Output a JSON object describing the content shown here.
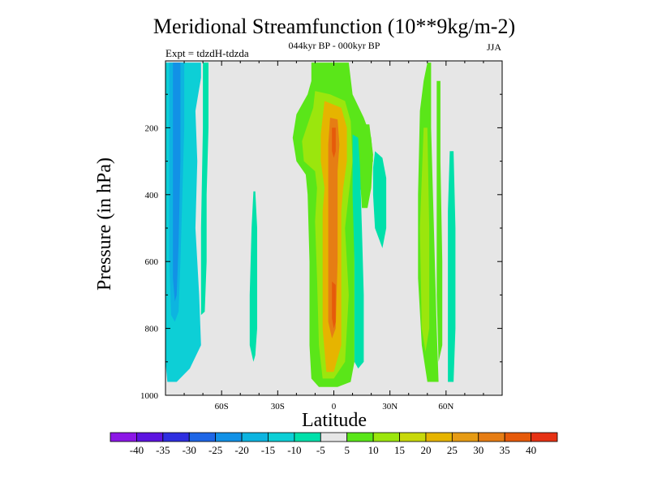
{
  "chart_data": {
    "type": "heatmap",
    "title": "Meridional Streamfunction (10**9kg/m-2)",
    "subtitle": "044kyr BP - 000kyr BP",
    "left_label": "Expt = tdzdH-tdzda",
    "right_label": "JJA",
    "xlabel": "Latitude",
    "ylabel": "Pressure (in hPa)",
    "xlim": [
      -90,
      90
    ],
    "ylim": [
      1000,
      0
    ],
    "x_ticks": [
      {
        "value": -60,
        "label": "60S"
      },
      {
        "value": -30,
        "label": "30S"
      },
      {
        "value": 0,
        "label": "0"
      },
      {
        "value": 30,
        "label": "30N"
      },
      {
        "value": 60,
        "label": "60N"
      }
    ],
    "y_ticks": [
      {
        "value": 200,
        "label": "200"
      },
      {
        "value": 400,
        "label": "400"
      },
      {
        "value": 600,
        "label": "600"
      },
      {
        "value": 800,
        "label": "800"
      },
      {
        "value": 1000,
        "label": "1000"
      }
    ],
    "background_color": "#e6e6e6",
    "colorbar": {
      "levels": [
        "-40",
        "-35",
        "-30",
        "-25",
        "-20",
        "-15",
        "-10",
        "-5",
        "5",
        "10",
        "15",
        "20",
        "25",
        "30",
        "35",
        "40"
      ],
      "colors": [
        "#8c17e6",
        "#5d14e0",
        "#2f2fe0",
        "#1e66e6",
        "#1291e6",
        "#0db4e0",
        "#0dcfd6",
        "#00e0aa",
        "#e6e6e6",
        "#5ae619",
        "#9be60d",
        "#c8d80a",
        "#e6b400",
        "#e69b14",
        "#e67d14",
        "#e65a0a",
        "#e63214"
      ]
    },
    "regions": [
      {
        "name": "sh-band-outer",
        "value": -12,
        "polygon": [
          [
            -90,
            5
          ],
          [
            -71,
            5
          ],
          [
            -71,
            50
          ],
          [
            -74,
            150
          ],
          [
            -73,
            300
          ],
          [
            -74,
            500
          ],
          [
            -72,
            700
          ],
          [
            -71,
            850
          ],
          [
            -77,
            920
          ],
          [
            -84,
            960
          ],
          [
            -89,
            960
          ],
          [
            -90,
            900
          ]
        ]
      },
      {
        "name": "sh-band-core",
        "value": -17,
        "polygon": [
          [
            -88,
            5
          ],
          [
            -80,
            5
          ],
          [
            -80,
            200
          ],
          [
            -81,
            400
          ],
          [
            -82,
            600
          ],
          [
            -83,
            750
          ],
          [
            -85,
            780
          ],
          [
            -87,
            760
          ],
          [
            -88,
            600
          ],
          [
            -88,
            300
          ]
        ]
      },
      {
        "name": "sh-band-deep",
        "value": -22,
        "polygon": [
          [
            -86,
            5
          ],
          [
            -82,
            5
          ],
          [
            -82,
            300
          ],
          [
            -83,
            550
          ],
          [
            -84,
            700
          ],
          [
            -85,
            720
          ],
          [
            -86,
            650
          ],
          [
            -86,
            300
          ]
        ]
      },
      {
        "name": "sh-slim-band",
        "value": -8,
        "polygon": [
          [
            -70,
            5
          ],
          [
            -67,
            5
          ],
          [
            -67,
            200
          ],
          [
            -68,
            400
          ],
          [
            -68,
            600
          ],
          [
            -69,
            750
          ],
          [
            -71,
            760
          ],
          [
            -71,
            500
          ],
          [
            -70,
            200
          ]
        ]
      },
      {
        "name": "sh-midlat-blip",
        "value": -8,
        "polygon": [
          [
            -43,
            390
          ],
          [
            -42,
            390
          ],
          [
            -41,
            500
          ],
          [
            -41,
            800
          ],
          [
            -42,
            880
          ],
          [
            -43,
            900
          ],
          [
            -45,
            850
          ],
          [
            -45,
            700
          ],
          [
            -44,
            500
          ]
        ]
      },
      {
        "name": "eq-outer",
        "value": 7,
        "polygon": [
          [
            -12,
            5
          ],
          [
            8,
            5
          ],
          [
            10,
            100
          ],
          [
            16,
            170
          ],
          [
            20,
            230
          ],
          [
            21,
            300
          ],
          [
            16,
            360
          ],
          [
            11,
            440
          ],
          [
            11,
            700
          ],
          [
            11,
            900
          ],
          [
            9,
            960
          ],
          [
            2,
            975
          ],
          [
            -8,
            975
          ],
          [
            -12,
            950
          ],
          [
            -13,
            850
          ],
          [
            -13,
            600
          ],
          [
            -14,
            400
          ],
          [
            -15,
            340
          ],
          [
            -20,
            300
          ],
          [
            -22,
            230
          ],
          [
            -20,
            160
          ],
          [
            -14,
            100
          ],
          [
            -12,
            60
          ]
        ]
      },
      {
        "name": "eq-level-10",
        "value": 12,
        "polygon": [
          [
            -10,
            90
          ],
          [
            -2,
            100
          ],
          [
            6,
            120
          ],
          [
            9,
            180
          ],
          [
            10,
            300
          ],
          [
            8,
            400
          ],
          [
            6,
            500
          ],
          [
            8,
            700
          ],
          [
            6,
            900
          ],
          [
            0,
            950
          ],
          [
            -6,
            950
          ],
          [
            -8,
            850
          ],
          [
            -9,
            650
          ],
          [
            -10,
            480
          ],
          [
            -9,
            380
          ],
          [
            -10,
            330
          ],
          [
            -16,
            300
          ],
          [
            -17,
            240
          ],
          [
            -14,
            190
          ],
          [
            -11,
            140
          ]
        ]
      },
      {
        "name": "eq-level-20",
        "value": 22,
        "polygon": [
          [
            -5,
            120
          ],
          [
            4,
            140
          ],
          [
            7,
            200
          ],
          [
            7,
            300
          ],
          [
            5,
            380
          ],
          [
            4,
            450
          ],
          [
            4,
            600
          ],
          [
            4,
            850
          ],
          [
            0,
            930
          ],
          [
            -4,
            930
          ],
          [
            -6,
            800
          ],
          [
            -6,
            600
          ],
          [
            -6,
            450
          ],
          [
            -5,
            380
          ],
          [
            -7,
            300
          ],
          [
            -7,
            220
          ]
        ]
      },
      {
        "name": "eq-level-30",
        "value": 32,
        "polygon": [
          [
            -2,
            170
          ],
          [
            2,
            175
          ],
          [
            3,
            250
          ],
          [
            2,
            330
          ],
          [
            2,
            420
          ],
          [
            2,
            600
          ],
          [
            1,
            800
          ],
          [
            -1,
            830
          ],
          [
            -3,
            780
          ],
          [
            -3,
            600
          ],
          [
            -3,
            450
          ],
          [
            -3,
            330
          ],
          [
            -3,
            250
          ]
        ]
      },
      {
        "name": "eq-core",
        "value": 37,
        "polygon": [
          [
            -1,
            200
          ],
          [
            1,
            200
          ],
          [
            1,
            270
          ],
          [
            0,
            290
          ],
          [
            -1,
            270
          ]
        ]
      },
      {
        "name": "eq-core-lower",
        "value": 37,
        "polygon": [
          [
            -1,
            660
          ],
          [
            1,
            670
          ],
          [
            1,
            780
          ],
          [
            0,
            800
          ],
          [
            -1,
            770
          ]
        ]
      },
      {
        "name": "tropics-n-cyan",
        "value": -8,
        "polygon": [
          [
            22,
            270
          ],
          [
            26,
            290
          ],
          [
            28,
            350
          ],
          [
            28,
            500
          ],
          [
            26,
            560
          ],
          [
            22,
            500
          ],
          [
            21,
            400
          ],
          [
            21,
            320
          ]
        ]
      },
      {
        "name": "tropics-n-green",
        "value": 8,
        "polygon": [
          [
            14,
            190
          ],
          [
            19,
            190
          ],
          [
            21,
            280
          ],
          [
            20,
            380
          ],
          [
            18,
            440
          ],
          [
            15,
            440
          ],
          [
            14,
            350
          ],
          [
            13,
            260
          ]
        ]
      },
      {
        "name": "sh-sub-strip",
        "value": -8,
        "polygon": [
          [
            10,
            220
          ],
          [
            13,
            230
          ],
          [
            14,
            320
          ],
          [
            15,
            500
          ],
          [
            16,
            700
          ],
          [
            16,
            900
          ],
          [
            13,
            920
          ],
          [
            11,
            900
          ],
          [
            11,
            600
          ],
          [
            10,
            400
          ]
        ]
      },
      {
        "name": "nh-band-green",
        "value": 8,
        "polygon": [
          [
            50,
            5
          ],
          [
            52,
            5
          ],
          [
            52,
            200
          ],
          [
            53,
            400
          ],
          [
            54,
            600
          ],
          [
            55,
            800
          ],
          [
            56,
            960
          ],
          [
            50,
            960
          ],
          [
            47,
            850
          ],
          [
            45,
            650
          ],
          [
            45,
            400
          ],
          [
            46,
            150
          ],
          [
            48,
            60
          ]
        ]
      },
      {
        "name": "nh-band-green-2",
        "value": 11,
        "polygon": [
          [
            48,
            200
          ],
          [
            50,
            200
          ],
          [
            51,
            500
          ],
          [
            51,
            800
          ],
          [
            49,
            870
          ],
          [
            47,
            800
          ],
          [
            46,
            500
          ]
        ]
      },
      {
        "name": "nh-band-green-3",
        "value": 8,
        "polygon": [
          [
            55,
            60
          ],
          [
            57,
            60
          ],
          [
            57,
            300
          ],
          [
            58,
            600
          ],
          [
            58,
            850
          ],
          [
            56,
            900
          ],
          [
            55,
            700
          ],
          [
            55,
            300
          ]
        ]
      },
      {
        "name": "nh-band-cyan",
        "value": -8,
        "polygon": [
          [
            62,
            270
          ],
          [
            64,
            270
          ],
          [
            65,
            500
          ],
          [
            65,
            800
          ],
          [
            64,
            960
          ],
          [
            61,
            960
          ],
          [
            61,
            700
          ],
          [
            61,
            450
          ]
        ]
      }
    ]
  }
}
